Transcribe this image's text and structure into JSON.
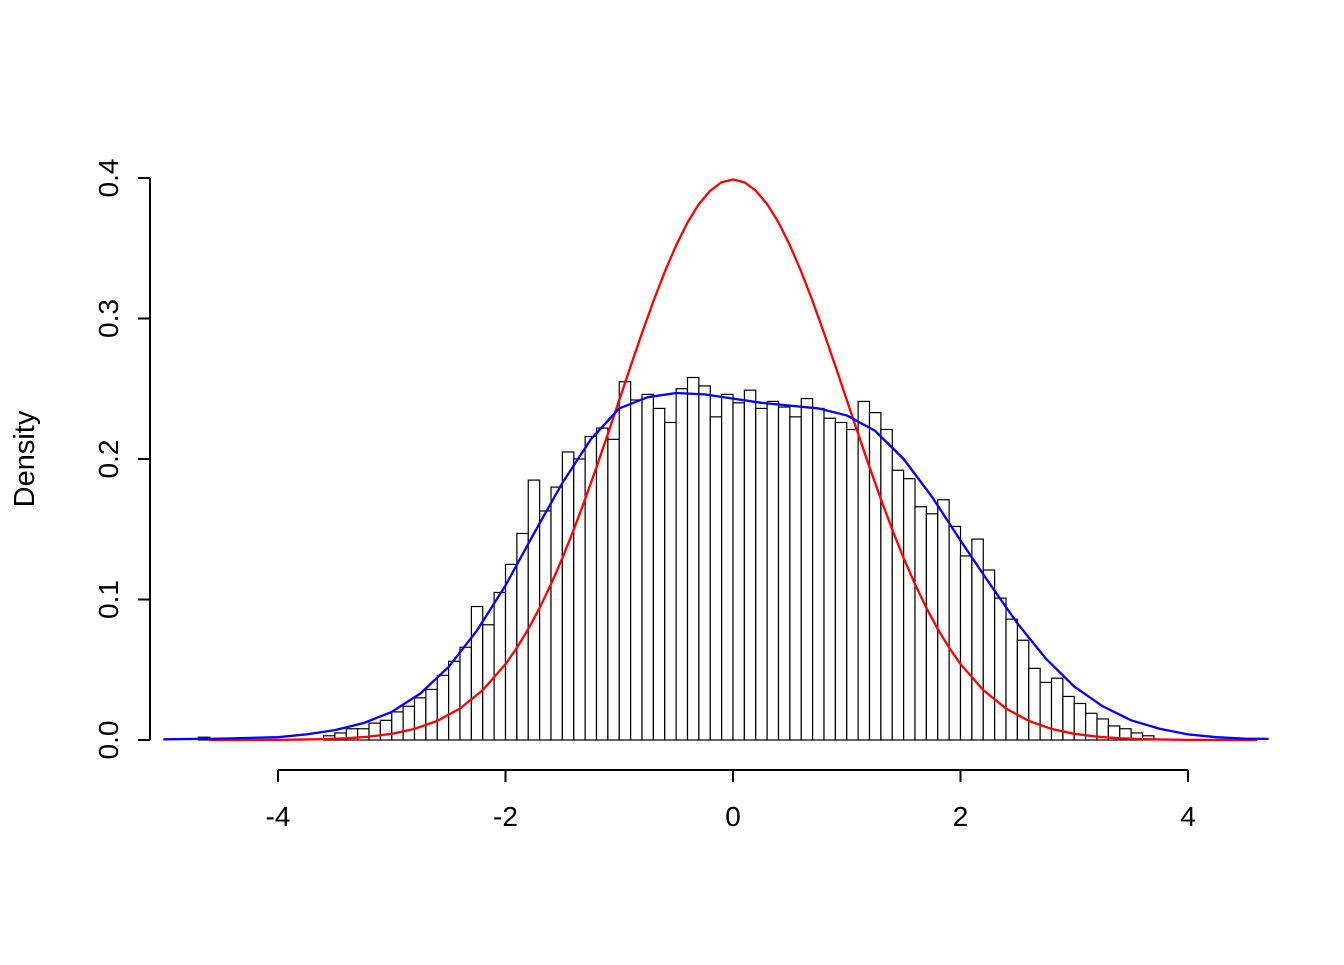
{
  "figure": {
    "background": "#ffffff",
    "colors": {
      "axis": "#000000",
      "hist_fill": "#ffffff",
      "hist_stroke": "#000000",
      "normal_curve": "#ff0000",
      "kde_curve": "#0000ff"
    }
  },
  "chart_data": {
    "type": "bar",
    "subtype": "histogram-with-density-overlays",
    "title": "",
    "xlabel": "",
    "ylabel": "Density",
    "xlim": [
      -5.1,
      4.8
    ],
    "ylim": [
      0,
      0.4
    ],
    "grid": false,
    "legend": "none",
    "x_ticks": [
      -4,
      -2,
      0,
      2,
      4
    ],
    "x_tick_labels": [
      "-4",
      "-2",
      "0",
      "2",
      "4"
    ],
    "y_ticks": [
      0.0,
      0.1,
      0.2,
      0.3,
      0.4
    ],
    "y_tick_labels": [
      "0.0",
      "0.1",
      "0.2",
      "0.3",
      "0.4"
    ],
    "histogram": {
      "bin_width": 0.1,
      "bins": [
        [
          -4.7,
          0.002
        ],
        [
          -3.6,
          0.003
        ],
        [
          -3.5,
          0.005
        ],
        [
          -3.4,
          0.008
        ],
        [
          -3.3,
          0.008
        ],
        [
          -3.2,
          0.012
        ],
        [
          -3.1,
          0.014
        ],
        [
          -3.0,
          0.02
        ],
        [
          -2.9,
          0.024
        ],
        [
          -2.8,
          0.03
        ],
        [
          -2.7,
          0.036
        ],
        [
          -2.6,
          0.046
        ],
        [
          -2.5,
          0.056
        ],
        [
          -2.4,
          0.066
        ],
        [
          -2.3,
          0.095
        ],
        [
          -2.2,
          0.082
        ],
        [
          -2.1,
          0.105
        ],
        [
          -2.0,
          0.125
        ],
        [
          -1.9,
          0.147
        ],
        [
          -1.8,
          0.185
        ],
        [
          -1.7,
          0.163
        ],
        [
          -1.6,
          0.18
        ],
        [
          -1.5,
          0.205
        ],
        [
          -1.4,
          0.2
        ],
        [
          -1.3,
          0.216
        ],
        [
          -1.2,
          0.222
        ],
        [
          -1.1,
          0.214
        ],
        [
          -1.0,
          0.255
        ],
        [
          -0.9,
          0.242
        ],
        [
          -0.8,
          0.246
        ],
        [
          -0.7,
          0.236
        ],
        [
          -0.6,
          0.226
        ],
        [
          -0.5,
          0.25
        ],
        [
          -0.4,
          0.258
        ],
        [
          -0.3,
          0.252
        ],
        [
          -0.2,
          0.23
        ],
        [
          -0.1,
          0.246
        ],
        [
          0.0,
          0.24
        ],
        [
          0.1,
          0.249
        ],
        [
          0.2,
          0.236
        ],
        [
          0.3,
          0.241
        ],
        [
          0.4,
          0.237
        ],
        [
          0.5,
          0.23
        ],
        [
          0.6,
          0.243
        ],
        [
          0.7,
          0.236
        ],
        [
          0.8,
          0.229
        ],
        [
          0.9,
          0.226
        ],
        [
          1.0,
          0.221
        ],
        [
          1.1,
          0.241
        ],
        [
          1.2,
          0.233
        ],
        [
          1.3,
          0.221
        ],
        [
          1.4,
          0.192
        ],
        [
          1.5,
          0.186
        ],
        [
          1.6,
          0.166
        ],
        [
          1.7,
          0.161
        ],
        [
          1.8,
          0.171
        ],
        [
          1.9,
          0.152
        ],
        [
          2.0,
          0.131
        ],
        [
          2.1,
          0.143
        ],
        [
          2.2,
          0.121
        ],
        [
          2.3,
          0.101
        ],
        [
          2.4,
          0.086
        ],
        [
          2.5,
          0.071
        ],
        [
          2.6,
          0.051
        ],
        [
          2.7,
          0.041
        ],
        [
          2.8,
          0.044
        ],
        [
          2.9,
          0.031
        ],
        [
          3.0,
          0.026
        ],
        [
          3.1,
          0.019
        ],
        [
          3.2,
          0.015
        ],
        [
          3.3,
          0.01
        ],
        [
          3.4,
          0.008
        ],
        [
          3.5,
          0.005
        ],
        [
          3.6,
          0.003
        ]
      ]
    },
    "series": [
      {
        "name": "normal_density",
        "color": "#ff0000",
        "x": [
          -4.6,
          -4.4,
          -4.2,
          -4.0,
          -3.8,
          -3.6,
          -3.4,
          -3.2,
          -3.0,
          -2.8,
          -2.6,
          -2.4,
          -2.2,
          -2.0,
          -1.9,
          -1.8,
          -1.7,
          -1.6,
          -1.5,
          -1.4,
          -1.3,
          -1.2,
          -1.1,
          -1.0,
          -0.9,
          -0.8,
          -0.7,
          -0.6,
          -0.5,
          -0.4,
          -0.3,
          -0.2,
          -0.1,
          0.0,
          0.1,
          0.2,
          0.3,
          0.4,
          0.5,
          0.6,
          0.7,
          0.8,
          0.9,
          1.0,
          1.1,
          1.2,
          1.3,
          1.4,
          1.5,
          1.6,
          1.7,
          1.8,
          1.9,
          2.0,
          2.2,
          2.4,
          2.6,
          2.8,
          3.0,
          3.2,
          3.4,
          3.6,
          3.8,
          4.0,
          4.2,
          4.4,
          4.6
        ],
        "y": [
          0.0,
          0.0,
          0.0001,
          0.0001,
          0.0003,
          0.0006,
          0.0012,
          0.0024,
          0.0044,
          0.0079,
          0.0136,
          0.0224,
          0.0355,
          0.054,
          0.0656,
          0.079,
          0.094,
          0.1109,
          0.1295,
          0.1497,
          0.1714,
          0.1942,
          0.2179,
          0.242,
          0.2661,
          0.2897,
          0.3123,
          0.3332,
          0.3521,
          0.3683,
          0.3814,
          0.391,
          0.397,
          0.3989,
          0.397,
          0.391,
          0.3814,
          0.3683,
          0.3521,
          0.3332,
          0.3123,
          0.2897,
          0.2661,
          0.242,
          0.2179,
          0.1942,
          0.1714,
          0.1497,
          0.1295,
          0.1109,
          0.094,
          0.079,
          0.0656,
          0.054,
          0.0355,
          0.0224,
          0.0136,
          0.0079,
          0.0044,
          0.0024,
          0.0012,
          0.0006,
          0.0003,
          0.0001,
          0.0001,
          0.0,
          0.0
        ]
      },
      {
        "name": "kernel_density",
        "color": "#0000ff",
        "x": [
          -5.0,
          -4.5,
          -4.0,
          -3.75,
          -3.5,
          -3.25,
          -3.0,
          -2.75,
          -2.5,
          -2.25,
          -2.0,
          -1.75,
          -1.5,
          -1.25,
          -1.0,
          -0.75,
          -0.5,
          -0.25,
          0.0,
          0.25,
          0.5,
          0.75,
          1.0,
          1.25,
          1.5,
          1.75,
          2.0,
          2.25,
          2.5,
          2.75,
          3.0,
          3.25,
          3.5,
          3.75,
          4.0,
          4.25,
          4.5,
          4.7
        ],
        "y": [
          0.0005,
          0.001,
          0.002,
          0.004,
          0.007,
          0.012,
          0.02,
          0.033,
          0.052,
          0.078,
          0.11,
          0.147,
          0.183,
          0.214,
          0.236,
          0.244,
          0.247,
          0.246,
          0.243,
          0.24,
          0.238,
          0.236,
          0.231,
          0.22,
          0.2,
          0.173,
          0.142,
          0.112,
          0.083,
          0.058,
          0.038,
          0.024,
          0.014,
          0.008,
          0.004,
          0.002,
          0.001,
          0.0008
        ]
      }
    ]
  }
}
